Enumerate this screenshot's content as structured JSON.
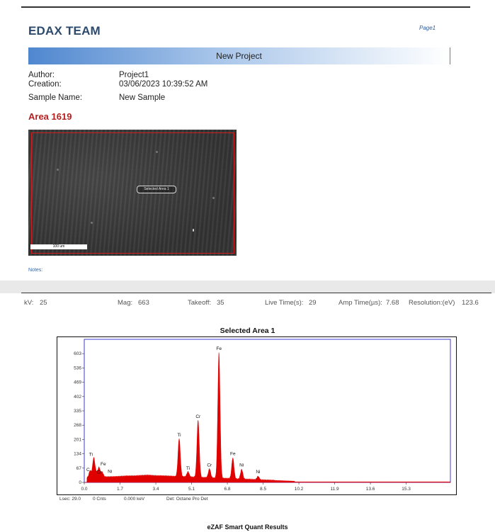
{
  "header": {
    "brand": "EDAX TEAM",
    "page_label": "Page1"
  },
  "banner": {
    "title": "New Project"
  },
  "meta": {
    "author_label": "Author:",
    "author_value": "Project1",
    "creation_label": "Creation:",
    "creation_value": "03/06/2023  10:39:52 AM",
    "sample_label": "Sample Name:",
    "sample_value": "New Sample"
  },
  "area": {
    "title": "Area 1619"
  },
  "image": {
    "selected_label": "Selected Area 1",
    "scale_text": "100 um"
  },
  "notes": {
    "label": "Notes:"
  },
  "acquisition": {
    "kv_label": "kV:",
    "kv_value": "25",
    "mag_label": "Mag:",
    "mag_value": "663",
    "takeoff_label": "Takeoff:",
    "takeoff_value": "35",
    "live_label": "Live Time(s):",
    "live_value": "29",
    "amp_label": "Amp Time(µs):",
    "amp_value": "7.68",
    "res_label": "Resolution:(eV)",
    "res_value": "123.6"
  },
  "chart_data": {
    "type": "area",
    "title": "Selected Area 1",
    "xlabel": "",
    "ylabel": "",
    "x_ticks": [
      "0.0",
      "1.7",
      "3.4",
      "5.1",
      "6.8",
      "8.5",
      "10.2",
      "11.9",
      "13.6",
      "15.3"
    ],
    "y_ticks": [
      "0",
      "67",
      "134",
      "201",
      "268",
      "335",
      "402",
      "469",
      "536",
      "603"
    ],
    "xlim": [
      0,
      17.4
    ],
    "ylim": [
      0,
      670
    ],
    "color": "#e00000",
    "background_level": 30,
    "peaks": [
      {
        "label": "C",
        "x": 0.28,
        "y": 46
      },
      {
        "label": "Ti",
        "x": 0.45,
        "y": 105
      },
      {
        "label": "Fe",
        "x": 0.7,
        "y": 60
      },
      {
        "label": "Cr",
        "x": 0.57,
        "y": 35
      },
      {
        "label": "Ni",
        "x": 0.85,
        "y": 38
      },
      {
        "label": "Ti",
        "x": 4.51,
        "y": 195
      },
      {
        "label": "Ti",
        "x": 4.93,
        "y": 40
      },
      {
        "label": "Cr",
        "x": 5.41,
        "y": 282
      },
      {
        "label": "Cr",
        "x": 5.95,
        "y": 55
      },
      {
        "label": "Fe",
        "x": 6.4,
        "y": 600
      },
      {
        "label": "Fe",
        "x": 7.06,
        "y": 108
      },
      {
        "label": "Ni",
        "x": 7.48,
        "y": 55
      },
      {
        "label": "Ni",
        "x": 8.26,
        "y": 24
      }
    ],
    "footer": {
      "lsec": "Lsec: 29.0",
      "cnts": "0 Cnts",
      "kev": "0.000 keV",
      "det": "Det: Octane Pro Det"
    }
  },
  "results": {
    "title": "eZAF Smart Quant Results"
  }
}
